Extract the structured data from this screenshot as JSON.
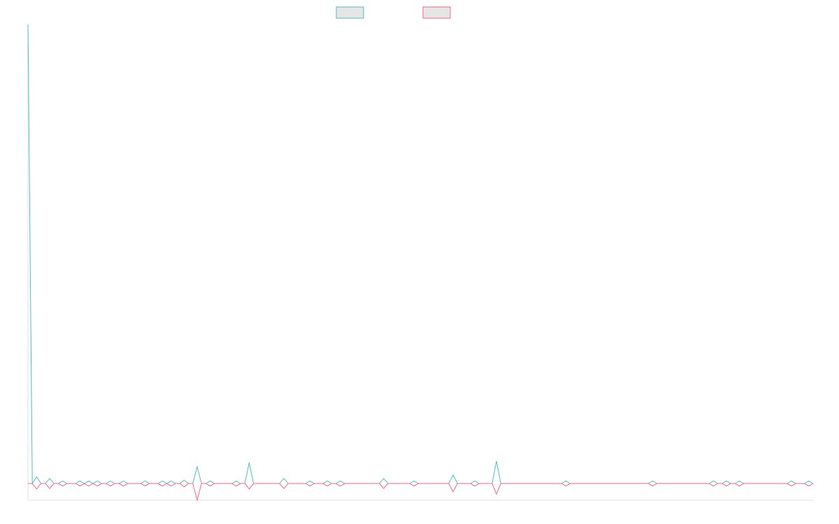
{
  "chart_data": {
    "type": "line",
    "x": [
      0,
      1,
      2,
      3,
      4,
      5,
      6,
      7,
      8,
      9,
      11,
      12,
      13,
      14,
      15,
      16,
      17,
      18,
      19,
      20,
      21,
      22,
      23,
      26,
      27,
      28,
      30,
      31,
      32,
      33,
      34,
      35,
      36,
      37,
      38,
      39,
      40,
      41,
      42,
      43,
      47,
      48,
      49,
      50,
      51,
      52,
      58,
      59,
      60,
      64,
      65,
      66,
      68,
      69,
      70,
      71,
      72,
      73,
      81,
      82,
      83,
      88,
      89,
      90,
      97,
      98,
      99,
      102,
      103,
      104,
      107,
      108,
      109,
      123,
      124,
      125,
      143,
      144,
      145,
      157,
      158,
      159,
      160,
      161,
      162,
      163,
      164,
      165,
      175,
      176,
      177,
      179,
      180,
      181
    ],
    "series": [
      {
        "color": "#4bc0c0",
        "values": [
          27.4,
          0,
          0.4,
          0,
          0,
          0.3,
          0,
          0,
          0.15,
          0,
          0,
          0.15,
          0,
          0.15,
          0,
          0.15,
          0,
          0,
          0.15,
          0,
          0,
          0.15,
          0,
          0,
          0.15,
          0,
          0,
          0.15,
          0,
          0.15,
          0,
          0,
          0.2,
          0,
          0,
          1,
          0,
          0,
          0.15,
          0,
          0,
          0.15,
          0,
          0,
          1.25,
          0,
          0,
          0.3,
          0,
          0,
          0.15,
          0,
          0,
          0.15,
          0,
          0,
          0.15,
          0,
          0,
          0.3,
          0,
          0,
          0.15,
          0,
          0,
          0.5,
          0,
          0,
          0.15,
          0,
          0,
          1.33,
          0,
          0,
          0.15,
          0,
          0,
          0.15,
          0,
          0,
          0.15,
          0,
          0,
          0.15,
          0,
          0,
          0.15,
          0,
          0,
          0.15,
          0,
          0,
          0.15,
          0
        ]
      },
      {
        "color": "#ff6384",
        "values": [
          0,
          0,
          -0.33,
          0,
          0,
          -0.3,
          0,
          0,
          -0.15,
          0,
          0,
          -0.15,
          0,
          -0.15,
          0,
          -0.15,
          0,
          0,
          -0.15,
          0,
          0,
          -0.15,
          0,
          0,
          -0.15,
          0,
          0,
          -0.15,
          0,
          -0.15,
          0,
          0,
          -0.2,
          0,
          0,
          -1,
          0,
          0,
          -0.15,
          0,
          0,
          -0.15,
          0,
          0,
          -0.33,
          0,
          0,
          -0.3,
          0,
          0,
          -0.15,
          0,
          0,
          -0.15,
          0,
          0,
          -0.15,
          0,
          0,
          -0.3,
          0,
          0,
          -0.15,
          0,
          0,
          -0.5,
          0,
          0,
          -0.15,
          0,
          0,
          -0.63,
          0,
          0,
          -0.15,
          0,
          0,
          -0.15,
          0,
          0,
          -0.15,
          0,
          0,
          -0.15,
          0,
          0,
          -0.15,
          0,
          0,
          -0.15,
          0,
          0,
          -0.15,
          0
        ]
      }
    ],
    "xlim": [
      0,
      181
    ],
    "ylim": [
      -1,
      27.4
    ]
  }
}
